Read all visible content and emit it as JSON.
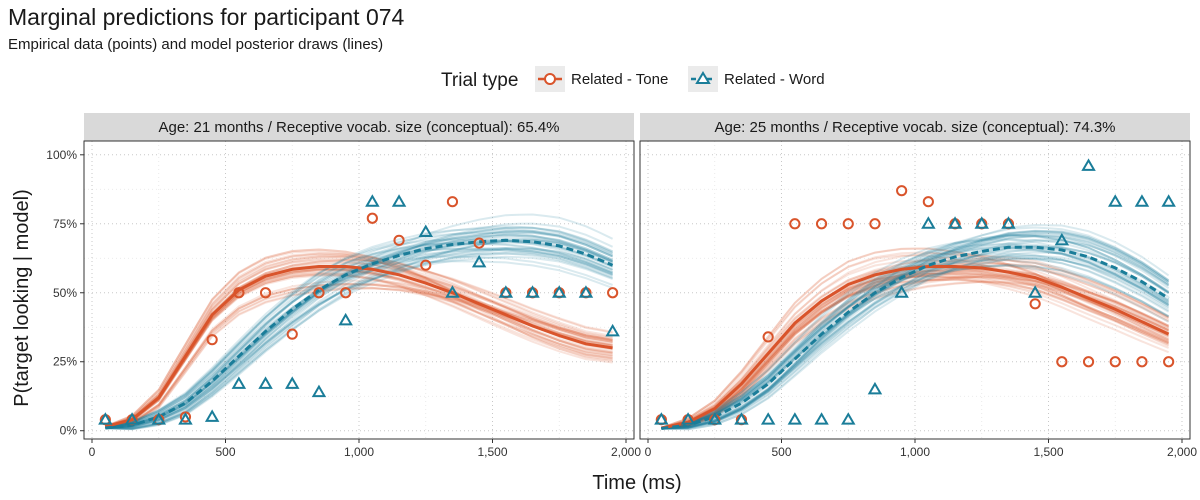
{
  "title": "Marginal predictions for participant 074",
  "subtitle": "Empirical data (points) and model posterior draws (lines)",
  "colors": {
    "tone": "#d9542b",
    "word": "#1a7d99",
    "strip": "#d9d9d9",
    "grid": "#c8c8c8"
  },
  "chart_data": {
    "type": "scatter",
    "xlabel": "Time (ms)",
    "ylabel": "P(target looking | model)",
    "xlim": [
      -30,
      2030
    ],
    "ylim": [
      -0.03,
      1.05
    ],
    "xticks": [
      0,
      500,
      1000,
      1500,
      2000
    ],
    "xtick_labels": [
      "0",
      "500",
      "1,000",
      "1,500",
      "2,000"
    ],
    "yticks": [
      0,
      0.25,
      0.5,
      0.75,
      1.0
    ],
    "ytick_labels": [
      "0%",
      "25%",
      "50%",
      "75%",
      "100%"
    ],
    "legend": {
      "title": "Trial type",
      "position": "top",
      "entries": [
        {
          "label": "Related - Tone",
          "series": "tone",
          "marker": "circle",
          "line": "solid"
        },
        {
          "label": "Related - Word",
          "series": "word",
          "marker": "triangle",
          "line": "dashed"
        }
      ]
    },
    "panels": [
      {
        "strip": "Age: 21 months / Receptive vocab. size (conceptual): 65.4%",
        "points": {
          "tone": [
            [
              50,
              0.04
            ],
            [
              150,
              0.04
            ],
            [
              250,
              0.04
            ],
            [
              350,
              0.05
            ],
            [
              450,
              0.33
            ],
            [
              550,
              0.5
            ],
            [
              650,
              0.5
            ],
            [
              750,
              0.35
            ],
            [
              850,
              0.5
            ],
            [
              950,
              0.5
            ],
            [
              1050,
              0.77
            ],
            [
              1150,
              0.69
            ],
            [
              1250,
              0.6
            ],
            [
              1350,
              0.83
            ],
            [
              1450,
              0.68
            ],
            [
              1550,
              0.5
            ],
            [
              1650,
              0.5
            ],
            [
              1750,
              0.5
            ],
            [
              1850,
              0.5
            ],
            [
              1950,
              0.5
            ]
          ],
          "word": [
            [
              50,
              0.04
            ],
            [
              150,
              0.04
            ],
            [
              250,
              0.04
            ],
            [
              350,
              0.04
            ],
            [
              450,
              0.05
            ],
            [
              550,
              0.17
            ],
            [
              650,
              0.17
            ],
            [
              750,
              0.17
            ],
            [
              850,
              0.14
            ],
            [
              950,
              0.4
            ],
            [
              1050,
              0.83
            ],
            [
              1150,
              0.83
            ],
            [
              1250,
              0.72
            ],
            [
              1350,
              0.5
            ],
            [
              1450,
              0.61
            ],
            [
              1550,
              0.5
            ],
            [
              1650,
              0.5
            ],
            [
              1750,
              0.5
            ],
            [
              1850,
              0.5
            ],
            [
              1950,
              0.36
            ]
          ]
        },
        "mean_lines": {
          "tone": [
            [
              50,
              0.015
            ],
            [
              150,
              0.04
            ],
            [
              250,
              0.12
            ],
            [
              350,
              0.27
            ],
            [
              450,
              0.42
            ],
            [
              550,
              0.51
            ],
            [
              650,
              0.56
            ],
            [
              750,
              0.585
            ],
            [
              850,
              0.595
            ],
            [
              950,
              0.595
            ],
            [
              1050,
              0.585
            ],
            [
              1150,
              0.565
            ],
            [
              1250,
              0.535
            ],
            [
              1350,
              0.5
            ],
            [
              1450,
              0.46
            ],
            [
              1550,
              0.42
            ],
            [
              1650,
              0.38
            ],
            [
              1750,
              0.345
            ],
            [
              1850,
              0.315
            ],
            [
              1950,
              0.3
            ]
          ],
          "word": [
            [
              50,
              0.01
            ],
            [
              150,
              0.02
            ],
            [
              250,
              0.05
            ],
            [
              350,
              0.1
            ],
            [
              450,
              0.18
            ],
            [
              550,
              0.27
            ],
            [
              650,
              0.36
            ],
            [
              750,
              0.44
            ],
            [
              850,
              0.51
            ],
            [
              950,
              0.565
            ],
            [
              1050,
              0.605
            ],
            [
              1150,
              0.635
            ],
            [
              1250,
              0.66
            ],
            [
              1350,
              0.675
            ],
            [
              1450,
              0.685
            ],
            [
              1550,
              0.69
            ],
            [
              1650,
              0.685
            ],
            [
              1750,
              0.67
            ],
            [
              1850,
              0.64
            ],
            [
              1950,
              0.6
            ]
          ]
        }
      },
      {
        "strip": "Age: 25 months / Receptive vocab. size (conceptual): 74.3%",
        "points": {
          "tone": [
            [
              50,
              0.04
            ],
            [
              150,
              0.04
            ],
            [
              250,
              0.04
            ],
            [
              350,
              0.04
            ],
            [
              450,
              0.34
            ],
            [
              550,
              0.75
            ],
            [
              650,
              0.75
            ],
            [
              750,
              0.75
            ],
            [
              850,
              0.75
            ],
            [
              950,
              0.87
            ],
            [
              1050,
              0.83
            ],
            [
              1150,
              0.75
            ],
            [
              1250,
              0.75
            ],
            [
              1350,
              0.75
            ],
            [
              1450,
              0.46
            ],
            [
              1550,
              0.25
            ],
            [
              1650,
              0.25
            ],
            [
              1750,
              0.25
            ],
            [
              1850,
              0.25
            ],
            [
              1950,
              0.25
            ]
          ],
          "word": [
            [
              50,
              0.04
            ],
            [
              150,
              0.04
            ],
            [
              250,
              0.04
            ],
            [
              350,
              0.04
            ],
            [
              450,
              0.04
            ],
            [
              550,
              0.04
            ],
            [
              650,
              0.04
            ],
            [
              750,
              0.04
            ],
            [
              850,
              0.15
            ],
            [
              950,
              0.5
            ],
            [
              1050,
              0.75
            ],
            [
              1150,
              0.75
            ],
            [
              1250,
              0.75
            ],
            [
              1350,
              0.75
            ],
            [
              1450,
              0.5
            ],
            [
              1550,
              0.69
            ],
            [
              1650,
              0.96
            ],
            [
              1750,
              0.83
            ],
            [
              1850,
              0.83
            ],
            [
              1950,
              0.83
            ]
          ]
        },
        "mean_lines": {
          "tone": [
            [
              50,
              0.01
            ],
            [
              150,
              0.03
            ],
            [
              250,
              0.08
            ],
            [
              350,
              0.17
            ],
            [
              450,
              0.28
            ],
            [
              550,
              0.39
            ],
            [
              650,
              0.47
            ],
            [
              750,
              0.53
            ],
            [
              850,
              0.565
            ],
            [
              950,
              0.585
            ],
            [
              1050,
              0.595
            ],
            [
              1150,
              0.595
            ],
            [
              1250,
              0.59
            ],
            [
              1350,
              0.575
            ],
            [
              1450,
              0.555
            ],
            [
              1550,
              0.52
            ],
            [
              1650,
              0.48
            ],
            [
              1750,
              0.44
            ],
            [
              1850,
              0.395
            ],
            [
              1950,
              0.35
            ]
          ],
          "word": [
            [
              50,
              0.008
            ],
            [
              150,
              0.02
            ],
            [
              250,
              0.05
            ],
            [
              350,
              0.1
            ],
            [
              450,
              0.17
            ],
            [
              550,
              0.26
            ],
            [
              650,
              0.35
            ],
            [
              750,
              0.43
            ],
            [
              850,
              0.5
            ],
            [
              950,
              0.555
            ],
            [
              1050,
              0.6
            ],
            [
              1150,
              0.63
            ],
            [
              1250,
              0.65
            ],
            [
              1350,
              0.665
            ],
            [
              1450,
              0.665
            ],
            [
              1550,
              0.655
            ],
            [
              1650,
              0.63
            ],
            [
              1750,
              0.59
            ],
            [
              1850,
              0.54
            ],
            [
              1950,
              0.48
            ]
          ]
        }
      }
    ]
  }
}
